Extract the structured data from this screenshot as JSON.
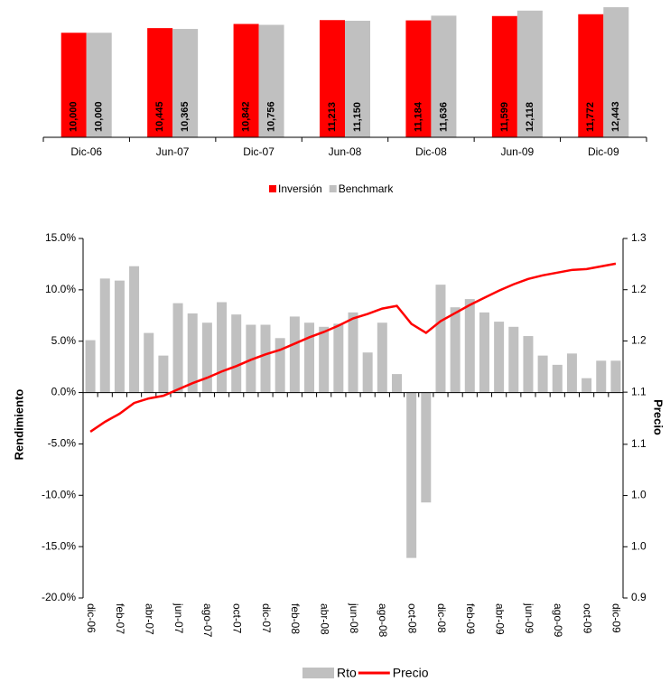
{
  "chart_data": [
    {
      "type": "bar",
      "categories": [
        "Dic-06",
        "Jun-07",
        "Dic-07",
        "Jun-08",
        "Dic-08",
        "Jun-09",
        "Dic-09"
      ],
      "series": [
        {
          "name": "Inversión",
          "color": "#ff0000",
          "values": [
            10000,
            10445,
            10842,
            11213,
            11184,
            11599,
            11772
          ],
          "value_labels": [
            "10,000",
            "10,445",
            "10,842",
            "11,213",
            "11,184",
            "11,599",
            "11,772"
          ]
        },
        {
          "name": "Benchmark",
          "color": "#c0c0c0",
          "values": [
            10000,
            10365,
            10756,
            11150,
            11636,
            12118,
            12443
          ],
          "value_labels": [
            "10,000",
            "10,365",
            "10,756",
            "11,150",
            "11,636",
            "12,118",
            "12,443"
          ]
        }
      ],
      "legend": "bottom"
    },
    {
      "type": "combo",
      "y_label": "Rendimiento",
      "y2_label": "Precio",
      "categories": [
        "dic-06",
        null,
        "feb-07",
        null,
        "abr-07",
        null,
        "jun-07",
        null,
        "ago-07",
        null,
        "oct-07",
        null,
        "dic-07",
        null,
        "feb-08",
        null,
        "abr-08",
        null,
        "jun-08",
        null,
        "ago-08",
        null,
        "oct-08",
        null,
        "dic-08",
        null,
        "feb-09",
        null,
        "abr-09",
        null,
        "jun-09",
        null,
        "ago-09",
        null,
        "oct-09",
        null,
        "dic-09"
      ],
      "series": [
        {
          "name": "Rto",
          "type": "bar",
          "color": "#c0c0c0",
          "values": [
            5.1,
            11.1,
            10.9,
            12.3,
            5.8,
            3.6,
            8.7,
            7.7,
            6.8,
            8.8,
            7.6,
            6.6,
            6.6,
            5.3,
            7.4,
            6.8,
            6.4,
            6.7,
            7.8,
            3.9,
            6.8,
            1.8,
            -16.1,
            -10.7,
            10.5,
            8.3,
            9.1,
            7.8,
            6.9,
            6.4,
            5.5,
            3.6,
            2.7,
            3.8,
            1.4,
            3.1,
            3.1
          ]
        },
        {
          "name": "Precio",
          "type": "line",
          "axis": "y2",
          "color": "#ff0000",
          "values": [
            1.085,
            1.096,
            1.105,
            1.117,
            1.122,
            1.125,
            1.132,
            1.139,
            1.145,
            1.152,
            1.158,
            1.165,
            1.171,
            1.176,
            1.183,
            1.19,
            1.196,
            1.203,
            1.211,
            1.216,
            1.222,
            1.225,
            1.205,
            1.195,
            1.208,
            1.217,
            1.226,
            1.234,
            1.242,
            1.249,
            1.255,
            1.259,
            1.262,
            1.265,
            1.266,
            1.269,
            1.272
          ]
        }
      ],
      "ylim": [
        -20,
        15
      ],
      "yticks": [
        {
          "value": -20,
          "label": "-20.0%"
        },
        {
          "value": -15,
          "label": "-15.0%"
        },
        {
          "value": -10,
          "label": "-10.0%"
        },
        {
          "value": -5,
          "label": "-5.0%"
        },
        {
          "value": 0,
          "label": "0.0%"
        },
        {
          "value": 5,
          "label": "5.0%"
        },
        {
          "value": 10,
          "label": "10.0%"
        },
        {
          "value": 15,
          "label": "15.0%"
        }
      ],
      "y2lim": [
        0.9,
        1.3
      ],
      "y2ticks": [
        {
          "value": 0.9,
          "label": "0.9"
        },
        {
          "value": 0.957,
          "label": "1.0"
        },
        {
          "value": 1.014,
          "label": "1.0"
        },
        {
          "value": 1.071,
          "label": "1.1"
        },
        {
          "value": 1.129,
          "label": "1.1"
        },
        {
          "value": 1.186,
          "label": "1.2"
        },
        {
          "value": 1.243,
          "label": "1.2"
        },
        {
          "value": 1.3,
          "label": "1.3"
        }
      ],
      "legend": "bottom"
    }
  ]
}
